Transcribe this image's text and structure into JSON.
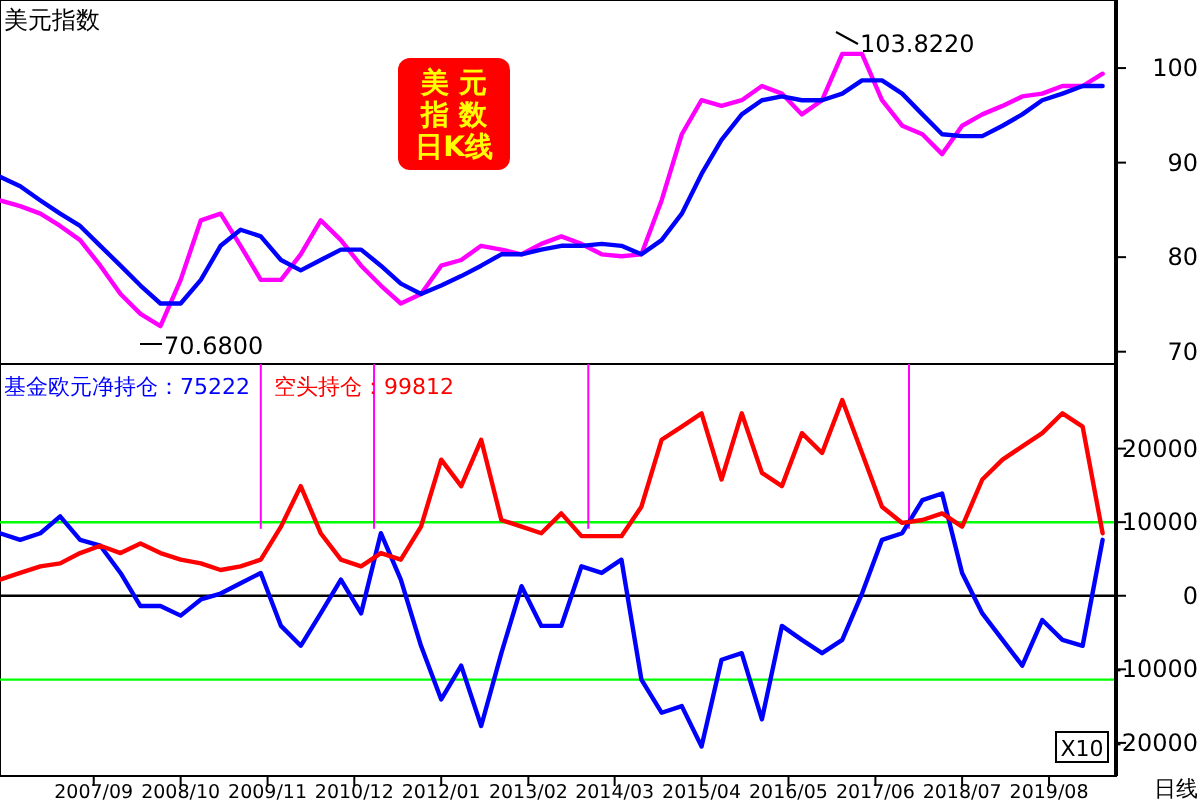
{
  "chart_data": [
    {
      "type": "line",
      "title": "美元指数",
      "tick_labels": "y",
      "grid": false,
      "legend": false,
      "xlim": [
        "2006-07",
        "2020-06"
      ],
      "ylim": [
        68.7,
        107.2
      ],
      "yticks": [
        70,
        80,
        90,
        100
      ],
      "x": [
        "2006-07",
        "2006-10",
        "2007-01",
        "2007-04",
        "2007-07",
        "2007-10",
        "2008-01",
        "2008-04",
        "2008-07",
        "2008-10",
        "2009-01",
        "2009-04",
        "2009-07",
        "2009-10",
        "2010-01",
        "2010-04",
        "2010-07",
        "2010-10",
        "2011-01",
        "2011-04",
        "2011-07",
        "2011-10",
        "2012-01",
        "2012-04",
        "2012-07",
        "2012-10",
        "2013-01",
        "2013-04",
        "2013-07",
        "2013-10",
        "2014-01",
        "2014-04",
        "2014-07",
        "2014-10",
        "2015-01",
        "2015-04",
        "2015-07",
        "2015-10",
        "2016-01",
        "2016-04",
        "2016-07",
        "2016-10",
        "2017-01",
        "2017-04",
        "2017-07",
        "2017-10",
        "2018-01",
        "2018-04",
        "2018-07",
        "2018-10",
        "2019-01",
        "2019-04",
        "2019-07",
        "2019-10",
        "2020-01",
        "2020-04"
      ],
      "series": [
        {
          "color": "#ff00ff",
          "values": [
            86.0,
            85.4,
            84.6,
            83.3,
            81.8,
            79.1,
            76.1,
            74.0,
            72.7,
            77.6,
            83.9,
            84.6,
            81.2,
            77.6,
            77.6,
            80.3,
            83.9,
            81.8,
            79.1,
            77.0,
            75.1,
            76.1,
            79.1,
            79.7,
            81.2,
            80.8,
            80.3,
            81.4,
            82.2,
            81.4,
            80.3,
            80.1,
            80.3,
            86.0,
            93.0,
            96.6,
            96.0,
            96.6,
            98.1,
            97.3,
            95.1,
            96.6,
            101.5,
            101.5,
            96.6,
            93.9,
            93.0,
            90.9,
            93.9,
            95.1,
            96.0,
            97.0,
            97.3,
            98.1,
            98.1,
            99.4
          ]
        },
        {
          "color": "#0000ff",
          "values": [
            88.5,
            87.5,
            86.0,
            84.6,
            83.3,
            81.2,
            79.1,
            77.0,
            75.1,
            75.1,
            77.6,
            81.2,
            82.9,
            82.2,
            79.7,
            78.6,
            79.7,
            80.8,
            80.8,
            79.1,
            77.2,
            76.1,
            77.0,
            78.0,
            79.1,
            80.3,
            80.3,
            80.8,
            81.2,
            81.2,
            81.4,
            81.2,
            80.3,
            81.8,
            84.6,
            88.8,
            92.4,
            95.1,
            96.6,
            97.0,
            96.6,
            96.6,
            97.3,
            98.7,
            98.7,
            97.3,
            95.1,
            93.0,
            92.8,
            92.8,
            93.9,
            95.1,
            96.6,
            97.3,
            98.1,
            98.1
          ]
        }
      ],
      "annotations": [
        "103.8220",
        "70.6800",
        "美元指数日K线"
      ]
    },
    {
      "type": "line",
      "grid": false,
      "legend": "top left",
      "xlim": [
        "2006-07",
        "2020-06"
      ],
      "ylim": [
        -24500,
        31500
      ],
      "yticks": [
        20000,
        10000,
        0,
        -10000,
        -20000
      ],
      "xticks": [
        {
          "value": "2007-09",
          "label": "2007/09"
        },
        {
          "value": "2008-10",
          "label": "2008/10"
        },
        {
          "value": "2009-11",
          "label": "2009/11"
        },
        {
          "value": "2010-12",
          "label": "2010/12"
        },
        {
          "value": "2012-01",
          "label": "2012/01"
        },
        {
          "value": "2013-02",
          "label": "2013/02"
        },
        {
          "value": "2014-03",
          "label": "2014/03"
        },
        {
          "value": "2015-04",
          "label": "2015/04"
        },
        {
          "value": "2016-05",
          "label": "2016/05"
        },
        {
          "value": "2017-06",
          "label": "2017/06"
        },
        {
          "value": "2018-07",
          "label": "2018/07"
        },
        {
          "value": "2019-08",
          "label": "2019/08"
        }
      ],
      "x": [
        "2006-07",
        "2006-10",
        "2007-01",
        "2007-04",
        "2007-07",
        "2007-10",
        "2008-01",
        "2008-04",
        "2008-07",
        "2008-10",
        "2009-01",
        "2009-04",
        "2009-07",
        "2009-10",
        "2010-01",
        "2010-04",
        "2010-07",
        "2010-10",
        "2011-01",
        "2011-04",
        "2011-07",
        "2011-10",
        "2012-01",
        "2012-04",
        "2012-07",
        "2012-10",
        "2013-01",
        "2013-04",
        "2013-07",
        "2013-10",
        "2014-01",
        "2014-04",
        "2014-07",
        "2014-10",
        "2015-01",
        "2015-04",
        "2015-07",
        "2015-10",
        "2016-01",
        "2016-04",
        "2016-07",
        "2016-10",
        "2017-01",
        "2017-04",
        "2017-07",
        "2017-10",
        "2018-01",
        "2018-04",
        "2018-07",
        "2018-10",
        "2019-01",
        "2019-04",
        "2019-07",
        "2019-10",
        "2020-01",
        "2020-04"
      ],
      "series": [
        {
          "name": "基金欧元净持仓：75222",
          "color": "#0000ff",
          "values": [
            8500,
            7600,
            8500,
            10800,
            7600,
            6800,
            3100,
            -1400,
            -1400,
            -2700,
            -500,
            300,
            1700,
            3100,
            -4100,
            -6800,
            -2400,
            2200,
            -2400,
            8500,
            2200,
            -6800,
            -14100,
            -9500,
            -17700,
            -7800,
            1300,
            -4100,
            -4100,
            4000,
            3100,
            4900,
            -11400,
            -15900,
            -15000,
            -20500,
            -8700,
            -7800,
            -16800,
            -4100,
            -6000,
            -7800,
            -6000,
            300,
            7600,
            8500,
            13000,
            13900,
            3100,
            -2400,
            -6000,
            -9500,
            -3300,
            -6000,
            -6800,
            7600
          ]
        },
        {
          "name": "空头持仓：99812",
          "color": "#ff0000",
          "values": [
            2200,
            3100,
            4000,
            4400,
            5800,
            6800,
            5800,
            7100,
            5800,
            4900,
            4400,
            3500,
            4000,
            4900,
            9400,
            14900,
            8500,
            4900,
            4000,
            5800,
            4900,
            9400,
            18500,
            14900,
            21200,
            10300,
            9400,
            8500,
            11200,
            8100,
            8100,
            8100,
            12100,
            21200,
            23000,
            24800,
            15800,
            24800,
            16700,
            14900,
            22100,
            19400,
            26600,
            19400,
            12100,
            9900,
            10300,
            11200,
            9400,
            15800,
            18500,
            20300,
            22100,
            24800,
            23000,
            8500
          ]
        }
      ],
      "ref_lines": [
        {
          "axis": "y",
          "value": 10000,
          "color": "#00ff00"
        },
        {
          "axis": "y",
          "value": -11400,
          "color": "#00ff00"
        },
        {
          "axis": "y",
          "value": 0,
          "color": "#000000"
        },
        {
          "axis": "x",
          "value": "2009-10",
          "color": "#ff00ff"
        },
        {
          "axis": "x",
          "value": "2011-03",
          "color": "#ff00ff"
        },
        {
          "axis": "x",
          "value": "2013-11",
          "color": "#ff00ff"
        },
        {
          "axis": "x",
          "value": "2017-11",
          "color": "#ff00ff"
        }
      ],
      "annotations": [
        "X10",
        "日线"
      ]
    }
  ]
}
